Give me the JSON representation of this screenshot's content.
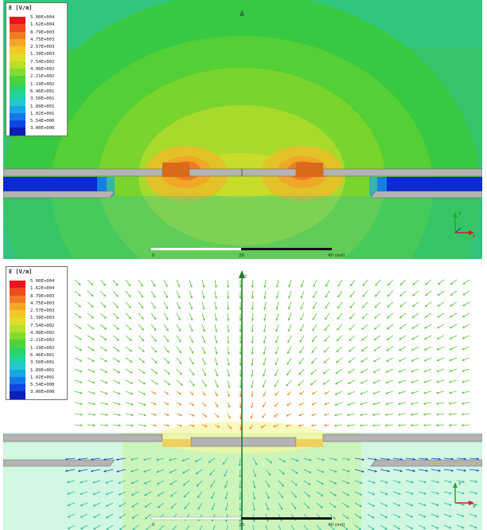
{
  "legend": {
    "title": "E [V/m]",
    "entries": [
      {
        "label": "5.00E+004",
        "color": "#e8141e"
      },
      {
        "label": "1.62E+004",
        "color": "#ee4a20"
      },
      {
        "label": "8.79E+003",
        "color": "#f27a22"
      },
      {
        "label": "4.75E+003",
        "color": "#f6a526"
      },
      {
        "label": "2.57E+003",
        "color": "#f4c628"
      },
      {
        "label": "1.39E+003",
        "color": "#e0dc2a"
      },
      {
        "label": "7.54E+002",
        "color": "#b8e02c"
      },
      {
        "label": "4.08E+002",
        "color": "#82dc30"
      },
      {
        "label": "2.21E+002",
        "color": "#4ed43a"
      },
      {
        "label": "1.19E+002",
        "color": "#2ed462"
      },
      {
        "label": "6.46E+001",
        "color": "#22d49a"
      },
      {
        "label": "3.50E+001",
        "color": "#20cad0"
      },
      {
        "label": "1.89E+001",
        "color": "#1aa6e6"
      },
      {
        "label": "1.02E+001",
        "color": "#1478ea"
      },
      {
        "label": "5.54E+000",
        "color": "#0c48e0"
      },
      {
        "label": "3.00E+000",
        "color": "#0a1eb8"
      }
    ]
  },
  "scale_bar": {
    "labels": [
      "0",
      "20",
      "40 (mil)"
    ]
  },
  "axes": {
    "y": "Y",
    "x": "x"
  },
  "colors": {
    "field_dark": "#1e8a3a",
    "field_mid": "#3fbf3f",
    "field_core": "#c8d82a",
    "conductor": "#b4b4b4",
    "substrate_blue": "#0c2ad0",
    "arrow_green": "#5cc23a",
    "arrow_blue": "#2a3adc",
    "arrow_orange": "#e08a20"
  }
}
